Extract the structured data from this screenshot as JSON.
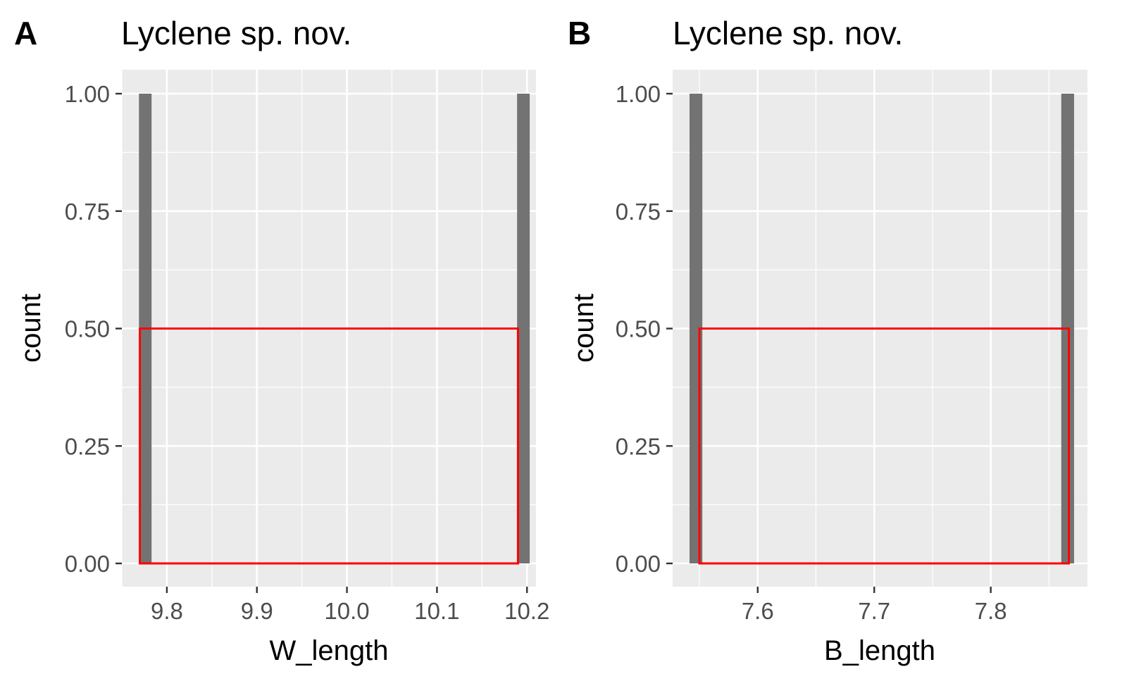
{
  "chart_data": [
    {
      "panel_tag": "A",
      "type": "histogram",
      "title": "Lyclene sp. nov.",
      "xlabel": "W_length",
      "ylabel": "count",
      "xlim": [
        9.75,
        10.21
      ],
      "ylim": [
        0,
        1
      ],
      "x_ticks": [
        "9.8",
        "9.9",
        "10.0",
        "10.1",
        "10.2"
      ],
      "x_tick_values": [
        9.8,
        9.9,
        10.0,
        10.1,
        10.2
      ],
      "y_ticks": [
        "0.00",
        "0.25",
        "0.50",
        "0.75",
        "1.00"
      ],
      "y_tick_values": [
        0,
        0.25,
        0.5,
        0.75,
        1.0
      ],
      "bars": [
        {
          "x": 9.776,
          "count": 1,
          "width": 0.014
        },
        {
          "x": 10.196,
          "count": 1,
          "width": 0.014
        }
      ],
      "overlay_rect": {
        "xmin": 9.77,
        "xmax": 10.19,
        "ymin": 0,
        "ymax": 0.5,
        "color": "#ff0000"
      },
      "bar_color": "#737373",
      "panel_bg": "#ebebeb",
      "grid": true
    },
    {
      "panel_tag": "B",
      "type": "histogram",
      "title": "Lyclene sp. nov.",
      "xlabel": "B_length",
      "ylabel": "count",
      "xlim": [
        7.527,
        7.883
      ],
      "ylim": [
        0,
        1
      ],
      "x_ticks": [
        "7.6",
        "7.7",
        "7.8"
      ],
      "x_tick_values": [
        7.6,
        7.7,
        7.8
      ],
      "y_ticks": [
        "0.00",
        "0.25",
        "0.50",
        "0.75",
        "1.00"
      ],
      "y_tick_values": [
        0,
        0.25,
        0.5,
        0.75,
        1.0
      ],
      "bars": [
        {
          "x": 7.547,
          "count": 1,
          "width": 0.011
        },
        {
          "x": 7.866,
          "count": 1,
          "width": 0.011
        }
      ],
      "overlay_rect": {
        "xmin": 7.55,
        "xmax": 7.867,
        "ymin": 0,
        "ymax": 0.5,
        "color": "#ff0000"
      },
      "bar_color": "#737373",
      "panel_bg": "#ebebeb",
      "grid": true
    }
  ]
}
